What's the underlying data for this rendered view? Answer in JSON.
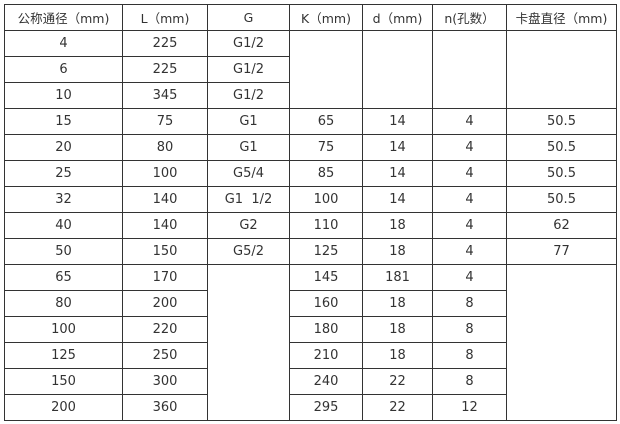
{
  "table": {
    "columns": [
      "公称通径（mm)",
      "L（mm)",
      "G",
      "K（mm)",
      "d（mm)",
      "n(孔数）",
      "卡盘直径（mm)"
    ],
    "rows": [
      [
        {
          "t": "4"
        },
        {
          "t": "225"
        },
        {
          "t": "G1/2"
        },
        {
          "t": "",
          "rs": 3
        },
        {
          "t": "",
          "rs": 3
        },
        {
          "t": "",
          "rs": 3
        },
        {
          "t": "",
          "rs": 3
        }
      ],
      [
        {
          "t": "6"
        },
        {
          "t": "225"
        },
        {
          "t": "G1/2"
        }
      ],
      [
        {
          "t": "10"
        },
        {
          "t": "345"
        },
        {
          "t": "G1/2"
        }
      ],
      [
        {
          "t": "15"
        },
        {
          "t": "75"
        },
        {
          "t": "G1"
        },
        {
          "t": "65"
        },
        {
          "t": "14"
        },
        {
          "t": "4"
        },
        {
          "t": "50.5"
        }
      ],
      [
        {
          "t": "20"
        },
        {
          "t": "80"
        },
        {
          "t": "G1"
        },
        {
          "t": "75"
        },
        {
          "t": "14"
        },
        {
          "t": "4"
        },
        {
          "t": "50.5"
        }
      ],
      [
        {
          "t": "25"
        },
        {
          "t": "100"
        },
        {
          "t": "G5/4"
        },
        {
          "t": "85"
        },
        {
          "t": "14"
        },
        {
          "t": "4"
        },
        {
          "t": "50.5"
        }
      ],
      [
        {
          "t": "32"
        },
        {
          "t": "140"
        },
        {
          "t": "G1  1/2"
        },
        {
          "t": "100"
        },
        {
          "t": "14"
        },
        {
          "t": "4"
        },
        {
          "t": "50.5"
        }
      ],
      [
        {
          "t": "40"
        },
        {
          "t": "140"
        },
        {
          "t": "G2"
        },
        {
          "t": "110"
        },
        {
          "t": "18"
        },
        {
          "t": "4"
        },
        {
          "t": "62"
        }
      ],
      [
        {
          "t": "50"
        },
        {
          "t": "150"
        },
        {
          "t": "G5/2"
        },
        {
          "t": "125"
        },
        {
          "t": "18"
        },
        {
          "t": "4"
        },
        {
          "t": "77"
        }
      ],
      [
        {
          "t": "65"
        },
        {
          "t": "170"
        },
        {
          "t": "",
          "rs": 6
        },
        {
          "t": "145"
        },
        {
          "t": "181"
        },
        {
          "t": "4"
        },
        {
          "t": "",
          "rs": 6
        }
      ],
      [
        {
          "t": "80"
        },
        {
          "t": "200"
        },
        {
          "t": "160"
        },
        {
          "t": "18"
        },
        {
          "t": "8"
        }
      ],
      [
        {
          "t": "100"
        },
        {
          "t": "220"
        },
        {
          "t": "180"
        },
        {
          "t": "18"
        },
        {
          "t": "8"
        }
      ],
      [
        {
          "t": "125"
        },
        {
          "t": "250"
        },
        {
          "t": "210"
        },
        {
          "t": "18"
        },
        {
          "t": "8"
        }
      ],
      [
        {
          "t": "150"
        },
        {
          "t": "300"
        },
        {
          "t": "240"
        },
        {
          "t": "22"
        },
        {
          "t": "8"
        }
      ],
      [
        {
          "t": "200"
        },
        {
          "t": "360"
        },
        {
          "t": "295"
        },
        {
          "t": "22"
        },
        {
          "t": "12"
        }
      ]
    ],
    "style": {
      "border_color": "#333333",
      "text_color": "#333333",
      "background": "#ffffff"
    }
  }
}
